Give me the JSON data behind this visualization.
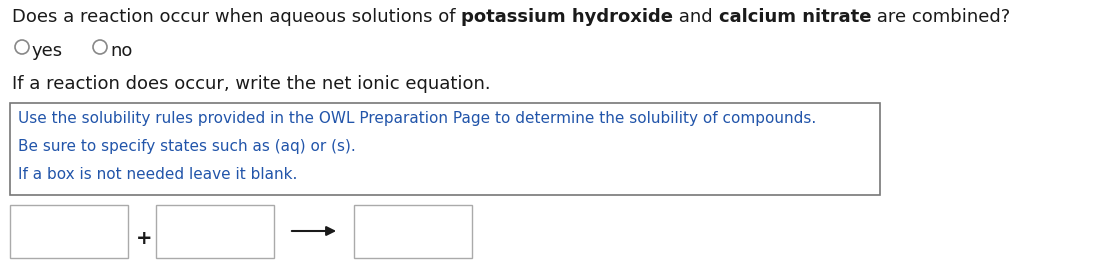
{
  "background_color": "#ffffff",
  "line1_normal": "Does a reaction occur when aqueous solutions of ",
  "line1_bold1": "potassium hydroxide",
  "line1_mid": " and ",
  "line1_bold2": "calcium nitrate",
  "line1_end": " are combined?",
  "line2_yes": "yes",
  "line2_no": "no",
  "line3": "If a reaction does occur, write the net ionic equation.",
  "box_text_line1": "Use the solubility rules provided in the OWL Preparation Page to determine the solubility of compounds.",
  "box_text_line2": "Be sure to specify states such as (aq) or (s).",
  "box_text_line3": "If a box is not needed leave it blank.",
  "text_color_black": "#1a1a1a",
  "text_color_blue": "#2255aa",
  "box_border_color": "#777777",
  "input_box_border": "#aaaaaa",
  "font_size_main": 13,
  "font_size_box": 11,
  "font_size_line3": 13
}
